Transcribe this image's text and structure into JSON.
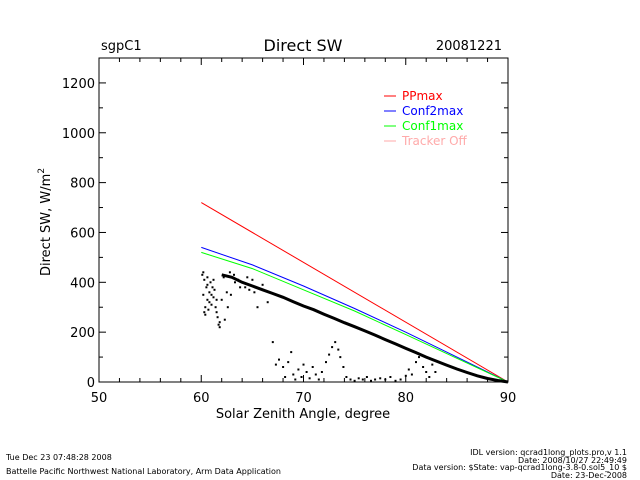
{
  "header": {
    "site": "sgpC1",
    "title": "Direct SW",
    "date": "20081221"
  },
  "footer": {
    "timestamp": "Tue Dec 23 07:48:28 2008",
    "org": "Battelle Pacific Northwest National Laboratory, Arm Data Application",
    "idl_version": "IDL version: qcrad1long_plots.pro,v 1.1",
    "idl_date": "Date: 2008/10/27 22:49:49",
    "data_version": "Data version: $State: vap-qcrad1long-3.8-0.sol5_10 $",
    "data_date": "Date: 23-Dec-2008"
  },
  "colors": {
    "ppmax": "#ff0000",
    "conf2max": "#0000ff",
    "conf1max": "#00ff00",
    "tracker_off": "#ffaaaa",
    "points": "#000000"
  },
  "chart_data": {
    "type": "scatter",
    "title": "Direct SW",
    "xlabel": "Solar Zenith Angle, degree",
    "ylabel_main": "Direct SW, W/m",
    "ylabel_sup": "2",
    "xlim": [
      50,
      90
    ],
    "ylim": [
      0,
      1300
    ],
    "xticks": [
      50,
      60,
      70,
      80,
      90
    ],
    "yticks": [
      0,
      200,
      400,
      600,
      800,
      1000,
      1200
    ],
    "legend_position": "top-right",
    "legend": [
      "PPmax",
      "Conf2max",
      "Conf1max",
      "Tracker Off"
    ],
    "series": [
      {
        "name": "PPmax",
        "type": "line",
        "x": [
          60,
          90
        ],
        "y": [
          720,
          0
        ]
      },
      {
        "name": "Conf2max",
        "type": "line",
        "x": [
          60,
          65,
          70,
          75,
          80,
          85,
          90
        ],
        "y": [
          540,
          470,
          385,
          295,
          200,
          100,
          0
        ]
      },
      {
        "name": "Conf1max",
        "type": "line",
        "x": [
          60,
          65,
          70,
          75,
          80,
          85,
          90
        ],
        "y": [
          520,
          455,
          370,
          285,
          190,
          95,
          0
        ]
      },
      {
        "name": "Tracker Off",
        "type": "line",
        "x": [],
        "y": []
      }
    ],
    "measured_trend": {
      "x": [
        62,
        63,
        64,
        65,
        66,
        67,
        68,
        69,
        70,
        71,
        72,
        73,
        74,
        75,
        76,
        77,
        78,
        79,
        80,
        81,
        82,
        83,
        84,
        85,
        86,
        87,
        88,
        89,
        90
      ],
      "y": [
        430,
        420,
        400,
        385,
        370,
        355,
        340,
        322,
        305,
        290,
        272,
        255,
        238,
        222,
        205,
        188,
        170,
        153,
        135,
        118,
        100,
        84,
        68,
        52,
        38,
        25,
        14,
        6,
        0
      ]
    },
    "scatter_points": {
      "x": [
        60.1,
        60.2,
        60.3,
        60.3,
        60.4,
        60.5,
        60.6,
        60.6,
        60.7,
        60.8,
        60.9,
        61.0,
        61.1,
        61.2,
        61.3,
        61.4,
        61.5,
        61.6,
        61.7,
        61.8,
        60.2,
        60.4,
        60.6,
        60.8,
        61.0,
        61.2,
        61.5,
        61.8,
        62.0,
        62.3,
        62.6,
        62.9,
        63.3,
        63.8,
        64.5,
        65.0,
        65.5,
        66.0,
        62.2,
        62.5,
        62.8,
        63.2,
        63.6,
        64.0,
        64.3,
        64.7,
        65.2,
        66.5,
        67.0,
        67.3,
        67.6,
        68.0,
        68.2,
        68.5,
        68.8,
        69.0,
        69.2,
        69.5,
        69.8,
        70.0,
        70.3,
        70.6,
        70.9,
        71.2,
        71.5,
        71.8,
        72.2,
        72.5,
        72.8,
        73.1,
        73.4,
        73.6,
        73.9,
        74.2,
        74.6,
        75.0,
        75.4,
        75.8,
        76.2,
        76.6,
        77.0,
        77.5,
        78.0,
        78.5,
        79.0,
        79.5,
        80.0,
        80.3,
        80.6,
        81.0,
        81.3,
        81.7,
        82.0,
        82.3,
        82.6,
        82.9
      ],
      "y": [
        430,
        350,
        280,
        410,
        300,
        380,
        330,
        420,
        290,
        360,
        400,
        310,
        380,
        340,
        370,
        300,
        330,
        260,
        230,
        220,
        440,
        270,
        390,
        320,
        350,
        410,
        280,
        240,
        330,
        250,
        300,
        350,
        400,
        380,
        420,
        410,
        300,
        390,
        420,
        360,
        440,
        430,
        410,
        400,
        380,
        370,
        360,
        320,
        160,
        70,
        90,
        60,
        20,
        80,
        120,
        30,
        10,
        50,
        20,
        70,
        40,
        15,
        60,
        30,
        10,
        40,
        80,
        110,
        140,
        160,
        130,
        100,
        60,
        20,
        10,
        5,
        15,
        10,
        20,
        5,
        10,
        15,
        10,
        20,
        5,
        10,
        25,
        50,
        30,
        80,
        100,
        60,
        40,
        20,
        70,
        40
      ]
    }
  }
}
